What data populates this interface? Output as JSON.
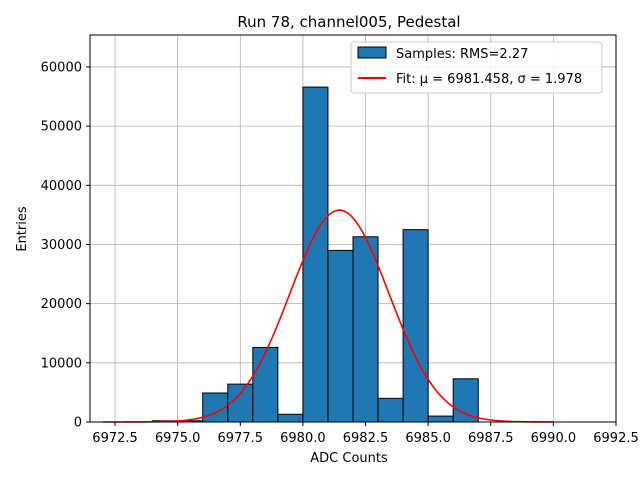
{
  "chart_data": {
    "type": "bar",
    "title": "Run 78, channel005, Pedestal",
    "xlabel": "ADC Counts",
    "ylabel": "Entries",
    "xlim": [
      6971.5,
      6992.5
    ],
    "ylim": [
      0,
      65400
    ],
    "x_ticks": [
      6972.5,
      6975.0,
      6977.5,
      6980.0,
      6982.5,
      6985.0,
      6987.5,
      6990.0,
      6992.5
    ],
    "x_tick_labels": [
      "6972.5",
      "6975.0",
      "6977.5",
      "6980.0",
      "6982.5",
      "6985.0",
      "6987.5",
      "6990.0",
      "6992.5"
    ],
    "y_ticks": [
      0,
      10000,
      20000,
      30000,
      40000,
      50000,
      60000
    ],
    "y_tick_labels": [
      "0",
      "10000",
      "20000",
      "30000",
      "40000",
      "50000",
      "60000"
    ],
    "grid": true,
    "legend_position": "top-right",
    "bin_width": 1.0,
    "series": [
      {
        "name": "Samples: RMS=2.27",
        "kind": "histogram",
        "color": "#1f77b4",
        "edge_color": "#000000",
        "bin_starts": [
          6974,
          6975,
          6976,
          6977,
          6978,
          6979,
          6980,
          6981,
          6982,
          6983,
          6984,
          6985,
          6986
        ],
        "values": [
          200,
          200,
          4900,
          6400,
          12600,
          1300,
          56600,
          29000,
          31300,
          4000,
          32500,
          1000,
          7300
        ]
      },
      {
        "name": "Fit: μ = 6981.458, σ = 1.978",
        "kind": "gaussian-fit",
        "color": "#ff0000",
        "mu": 6981.458,
        "sigma": 1.978,
        "amplitude": 35800,
        "x_range": [
          6972,
          6990
        ]
      }
    ]
  }
}
